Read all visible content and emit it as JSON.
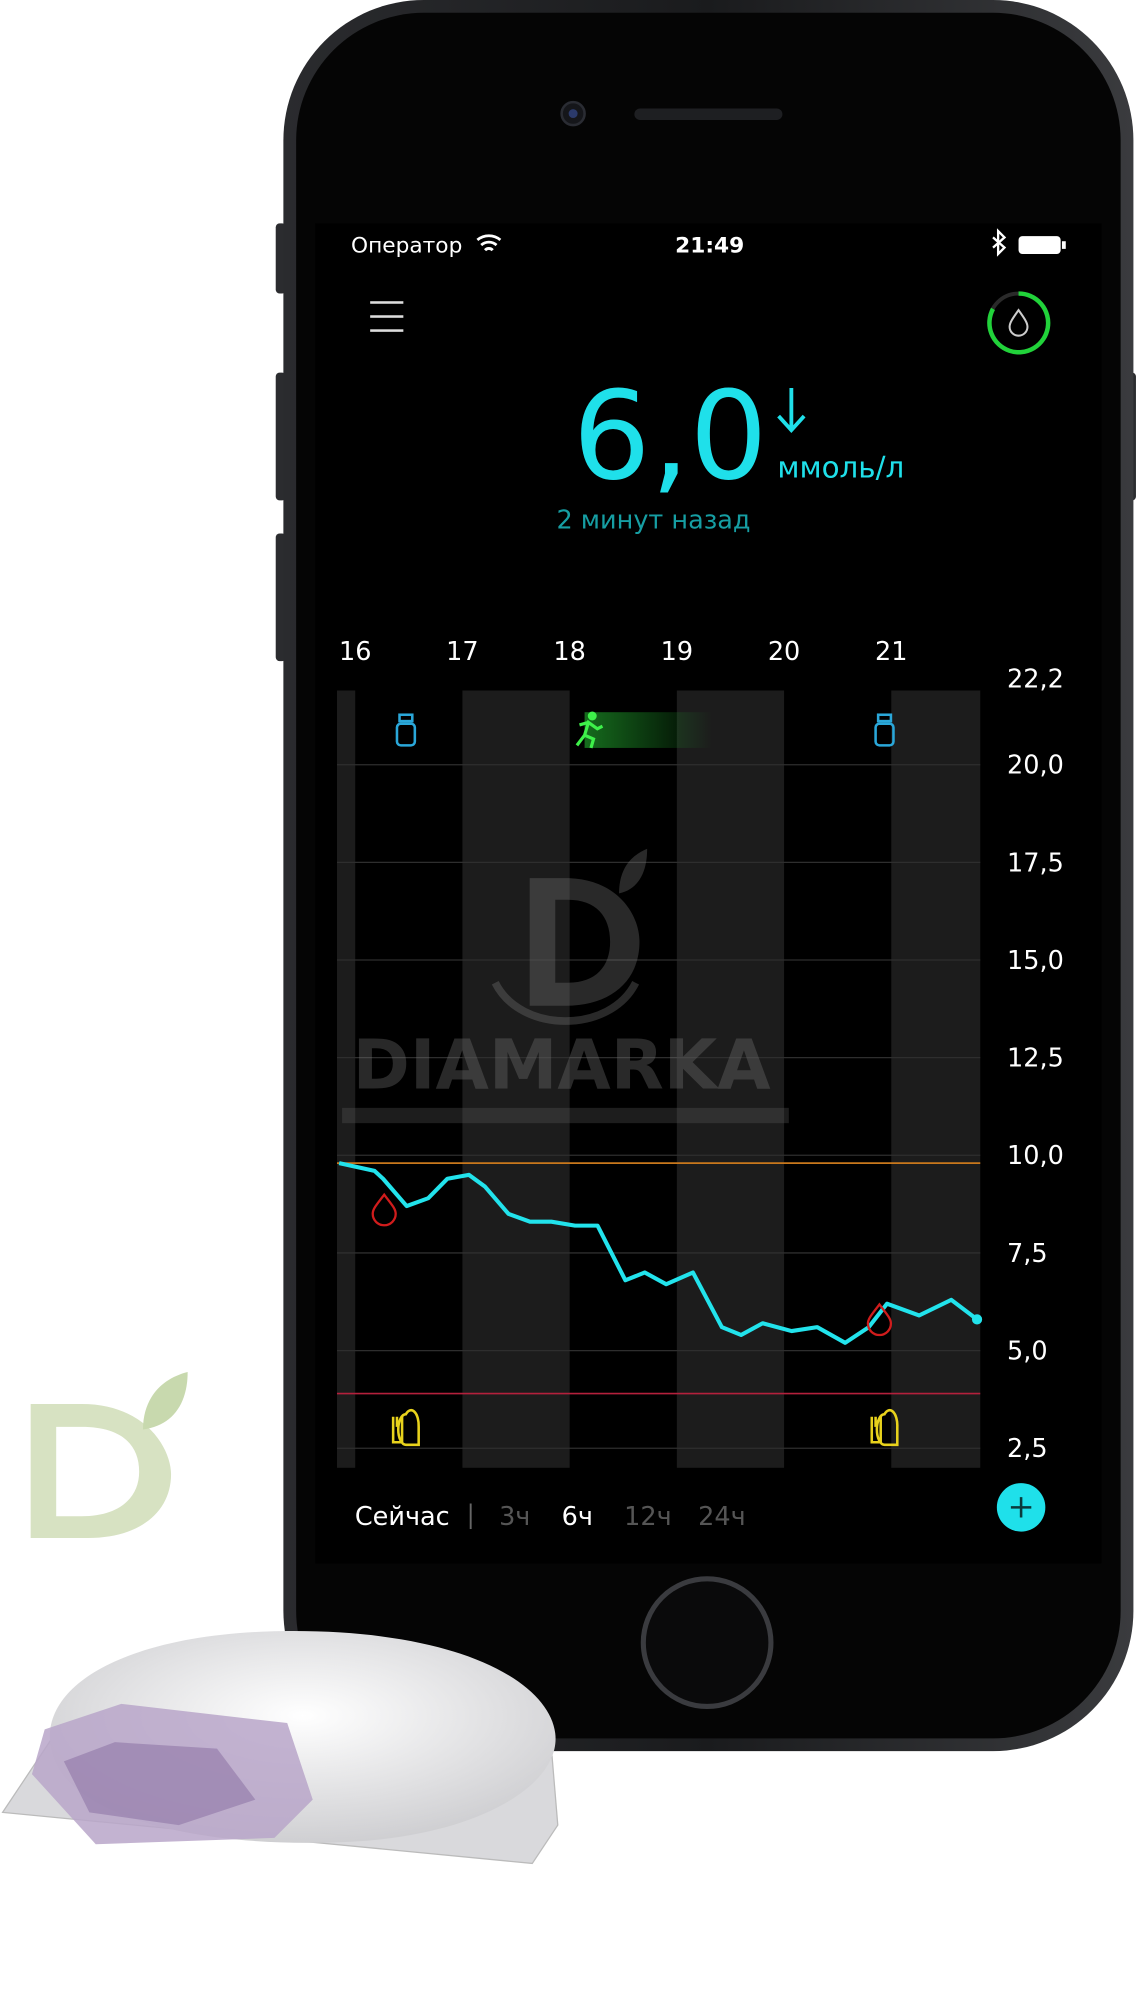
{
  "status_bar": {
    "carrier": "Оператор",
    "time": "21:49"
  },
  "reading": {
    "value": "6,0",
    "unit": "ммоль/л",
    "age": "2 минут назад"
  },
  "chart_data": {
    "type": "line",
    "xlim": [
      15.83,
      21.83
    ],
    "xticks": [
      16,
      17,
      18,
      19,
      20,
      21
    ],
    "ylim": [
      2.0,
      21.9
    ],
    "yticks": [
      {
        "value": 22.2,
        "label": "22,2"
      },
      {
        "value": 20,
        "label": "20,0"
      },
      {
        "value": 17.5,
        "label": "17,5"
      },
      {
        "value": 15,
        "label": "15,0"
      },
      {
        "value": 12.5,
        "label": "12,5"
      },
      {
        "value": 10,
        "label": "10,0"
      },
      {
        "value": 7.5,
        "label": "7,5"
      },
      {
        "value": 5,
        "label": "5,0"
      },
      {
        "value": 2.5,
        "label": "2,5"
      }
    ],
    "grid": true,
    "high_limit": 9.8,
    "high_color": "#c9781c",
    "low_limit": 3.9,
    "low_color": "#b4203c",
    "series": [
      {
        "color": "#22e3ec",
        "x": [
          15.85,
          16.18,
          16.26,
          16.48,
          16.68,
          16.86,
          17.06,
          17.21,
          17.43,
          17.63,
          17.83,
          18.05,
          18.26,
          18.52,
          18.7,
          18.9,
          19.15,
          19.42,
          19.6,
          19.8,
          20.07,
          20.31,
          20.57,
          20.79,
          20.96,
          21.26,
          21.56,
          21.8
        ],
        "values": [
          9.8,
          9.6,
          9.4,
          8.7,
          8.9,
          9.4,
          9.5,
          9.2,
          8.5,
          8.3,
          8.3,
          8.2,
          8.2,
          6.8,
          7.0,
          6.7,
          7.0,
          5.6,
          5.4,
          5.7,
          5.5,
          5.6,
          5.2,
          5.6,
          6.2,
          5.9,
          6.3,
          5.8
        ]
      }
    ]
  },
  "range_selector": {
    "options": [
      "Сейчас",
      "3ч",
      "6ч",
      "12ч",
      "24ч"
    ],
    "selected": 2
  },
  "watermark": {
    "text": "DIAMARKA"
  }
}
